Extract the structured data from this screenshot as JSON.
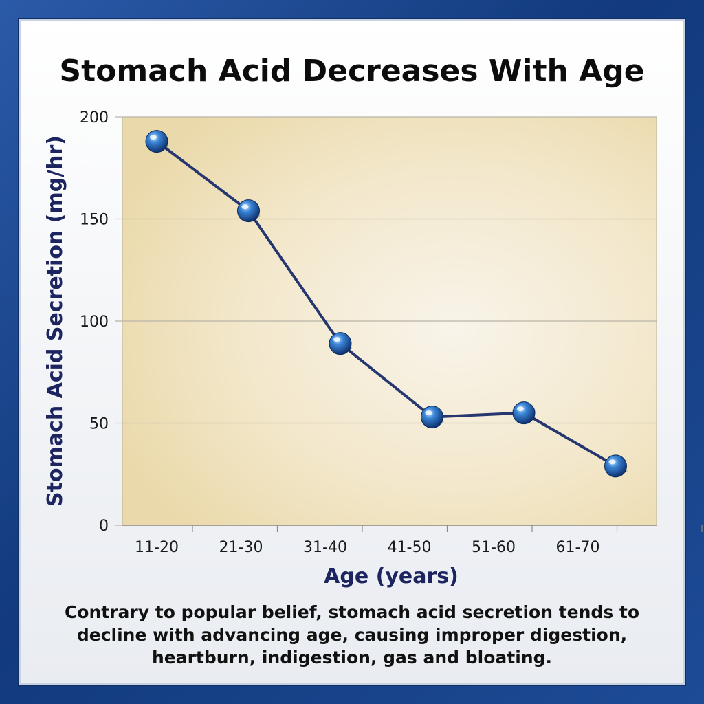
{
  "chart_data": {
    "type": "line",
    "title": "Stomach Acid Decreases With Age",
    "xlabel": "Age (years)",
    "ylabel": "Stomach Acid Secretion (mg/hr)",
    "categories": [
      "11-20",
      "21-30",
      "31-40",
      "41-50",
      "51-60",
      "61-70"
    ],
    "series": [
      {
        "values": [
          188,
          154,
          89,
          53,
          55,
          29
        ]
      }
    ],
    "ylim": [
      0,
      200
    ],
    "yticks": [
      0,
      50,
      100,
      150,
      200
    ],
    "grid": true,
    "colors": {
      "line": "#26366e",
      "marker": "#1f63b5",
      "plot_bg": "#f1e6c6"
    }
  },
  "caption": [
    "Contrary to popular belief, stomach acid secretion tends to",
    "decline with advancing age, causing improper digestion,",
    "heartburn, indigestion, gas and bloating."
  ]
}
